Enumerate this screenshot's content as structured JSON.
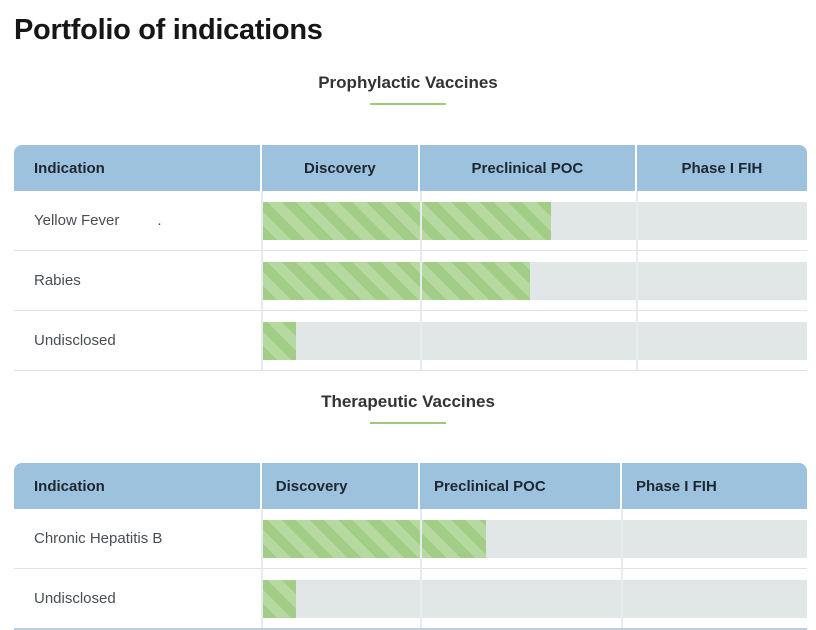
{
  "page": {
    "title": "Portfolio of indications"
  },
  "sections": [
    {
      "heading": "Prophylactic Vaccines",
      "columns": [
        "Indication",
        "Discovery",
        "Preclinical POC",
        "Phase I FIH"
      ],
      "rows": [
        {
          "label": "Yellow Fever",
          "suffix": ".",
          "progress_pct": 53
        },
        {
          "label": "Rabies",
          "suffix": "",
          "progress_pct": 49
        },
        {
          "label": "Undisclosed",
          "suffix": "",
          "progress_pct": 6
        }
      ]
    },
    {
      "heading": "Therapeutic Vaccines",
      "columns": [
        "Indication",
        "Discovery",
        "Preclinical POC",
        "Phase I FIH"
      ],
      "rows": [
        {
          "label": "Chronic Hepatitis B",
          "suffix": "",
          "progress_pct": 41
        },
        {
          "label": "Undisclosed",
          "suffix": "",
          "progress_pct": 6
        }
      ]
    }
  ],
  "colors": {
    "header_bg": "#9dc2de",
    "track_bg": "#e1e6e7",
    "stripe_dark": "#a1cd86",
    "stripe_light": "#b5d99e",
    "underline_green": "#9cc97e",
    "separator": "#e7ebed"
  }
}
